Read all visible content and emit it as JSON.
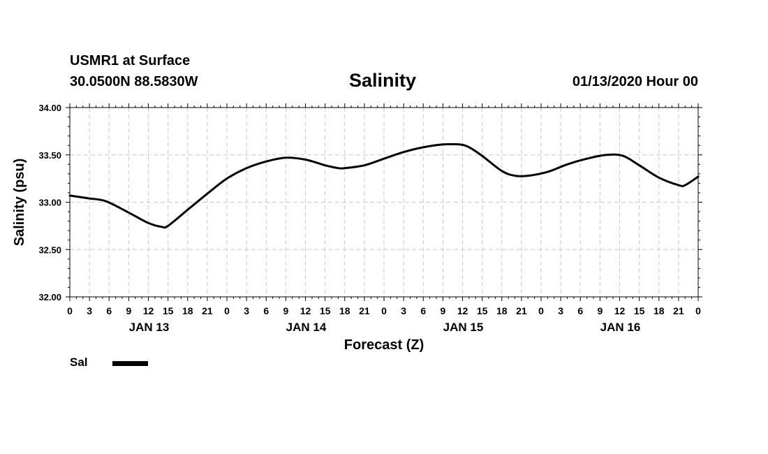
{
  "header": {
    "station": "USMR1 at Surface",
    "coords": "30.0500N 88.5830W",
    "title": "Salinity",
    "forecast_time": "01/13/2020 Hour 00"
  },
  "legend": {
    "label": "Sal",
    "color": "#000000"
  },
  "chart_data": {
    "type": "line",
    "title": "Salinity",
    "xlabel": "Forecast (Z)",
    "ylabel": "Salinity (psu)",
    "ylim": [
      32.0,
      34.0
    ],
    "yticks": [
      "32.00",
      "32.50",
      "33.00",
      "33.50",
      "34.00"
    ],
    "xlim_hours": [
      0,
      96
    ],
    "xtick_interval_hours": 3,
    "xtick_labels": [
      "0",
      "3",
      "6",
      "9",
      "12",
      "15",
      "18",
      "21",
      "0",
      "3",
      "6",
      "9",
      "12",
      "15",
      "18",
      "21",
      "0",
      "3",
      "6",
      "9",
      "12",
      "15",
      "18",
      "21",
      "0",
      "3",
      "6",
      "9",
      "12",
      "15",
      "18",
      "21",
      "0"
    ],
    "day_labels": [
      {
        "label": "JAN 13",
        "hour": 12
      },
      {
        "label": "JAN 14",
        "hour": 36
      },
      {
        "label": "JAN 15",
        "hour": 60
      },
      {
        "label": "JAN 16",
        "hour": 84
      }
    ],
    "grid": true,
    "series": [
      {
        "name": "Sal",
        "x": [
          0,
          3,
          5.5,
          9,
          12,
          14,
          15,
          18,
          21,
          24,
          27,
          30,
          33,
          36,
          39,
          41,
          42,
          45,
          48,
          51,
          54,
          57,
          59.5,
          61,
          63,
          66,
          68,
          70,
          73,
          76,
          79,
          82,
          84.5,
          87,
          90,
          93,
          94,
          96
        ],
        "y": [
          33.07,
          33.04,
          33.01,
          32.89,
          32.78,
          32.74,
          32.75,
          32.92,
          33.09,
          33.25,
          33.36,
          33.43,
          33.47,
          33.45,
          33.39,
          33.36,
          33.36,
          33.39,
          33.46,
          33.53,
          33.58,
          33.61,
          33.61,
          33.58,
          33.49,
          33.33,
          33.28,
          33.28,
          33.32,
          33.4,
          33.46,
          33.5,
          33.49,
          33.39,
          33.26,
          33.18,
          33.18,
          33.27
        ]
      }
    ]
  }
}
